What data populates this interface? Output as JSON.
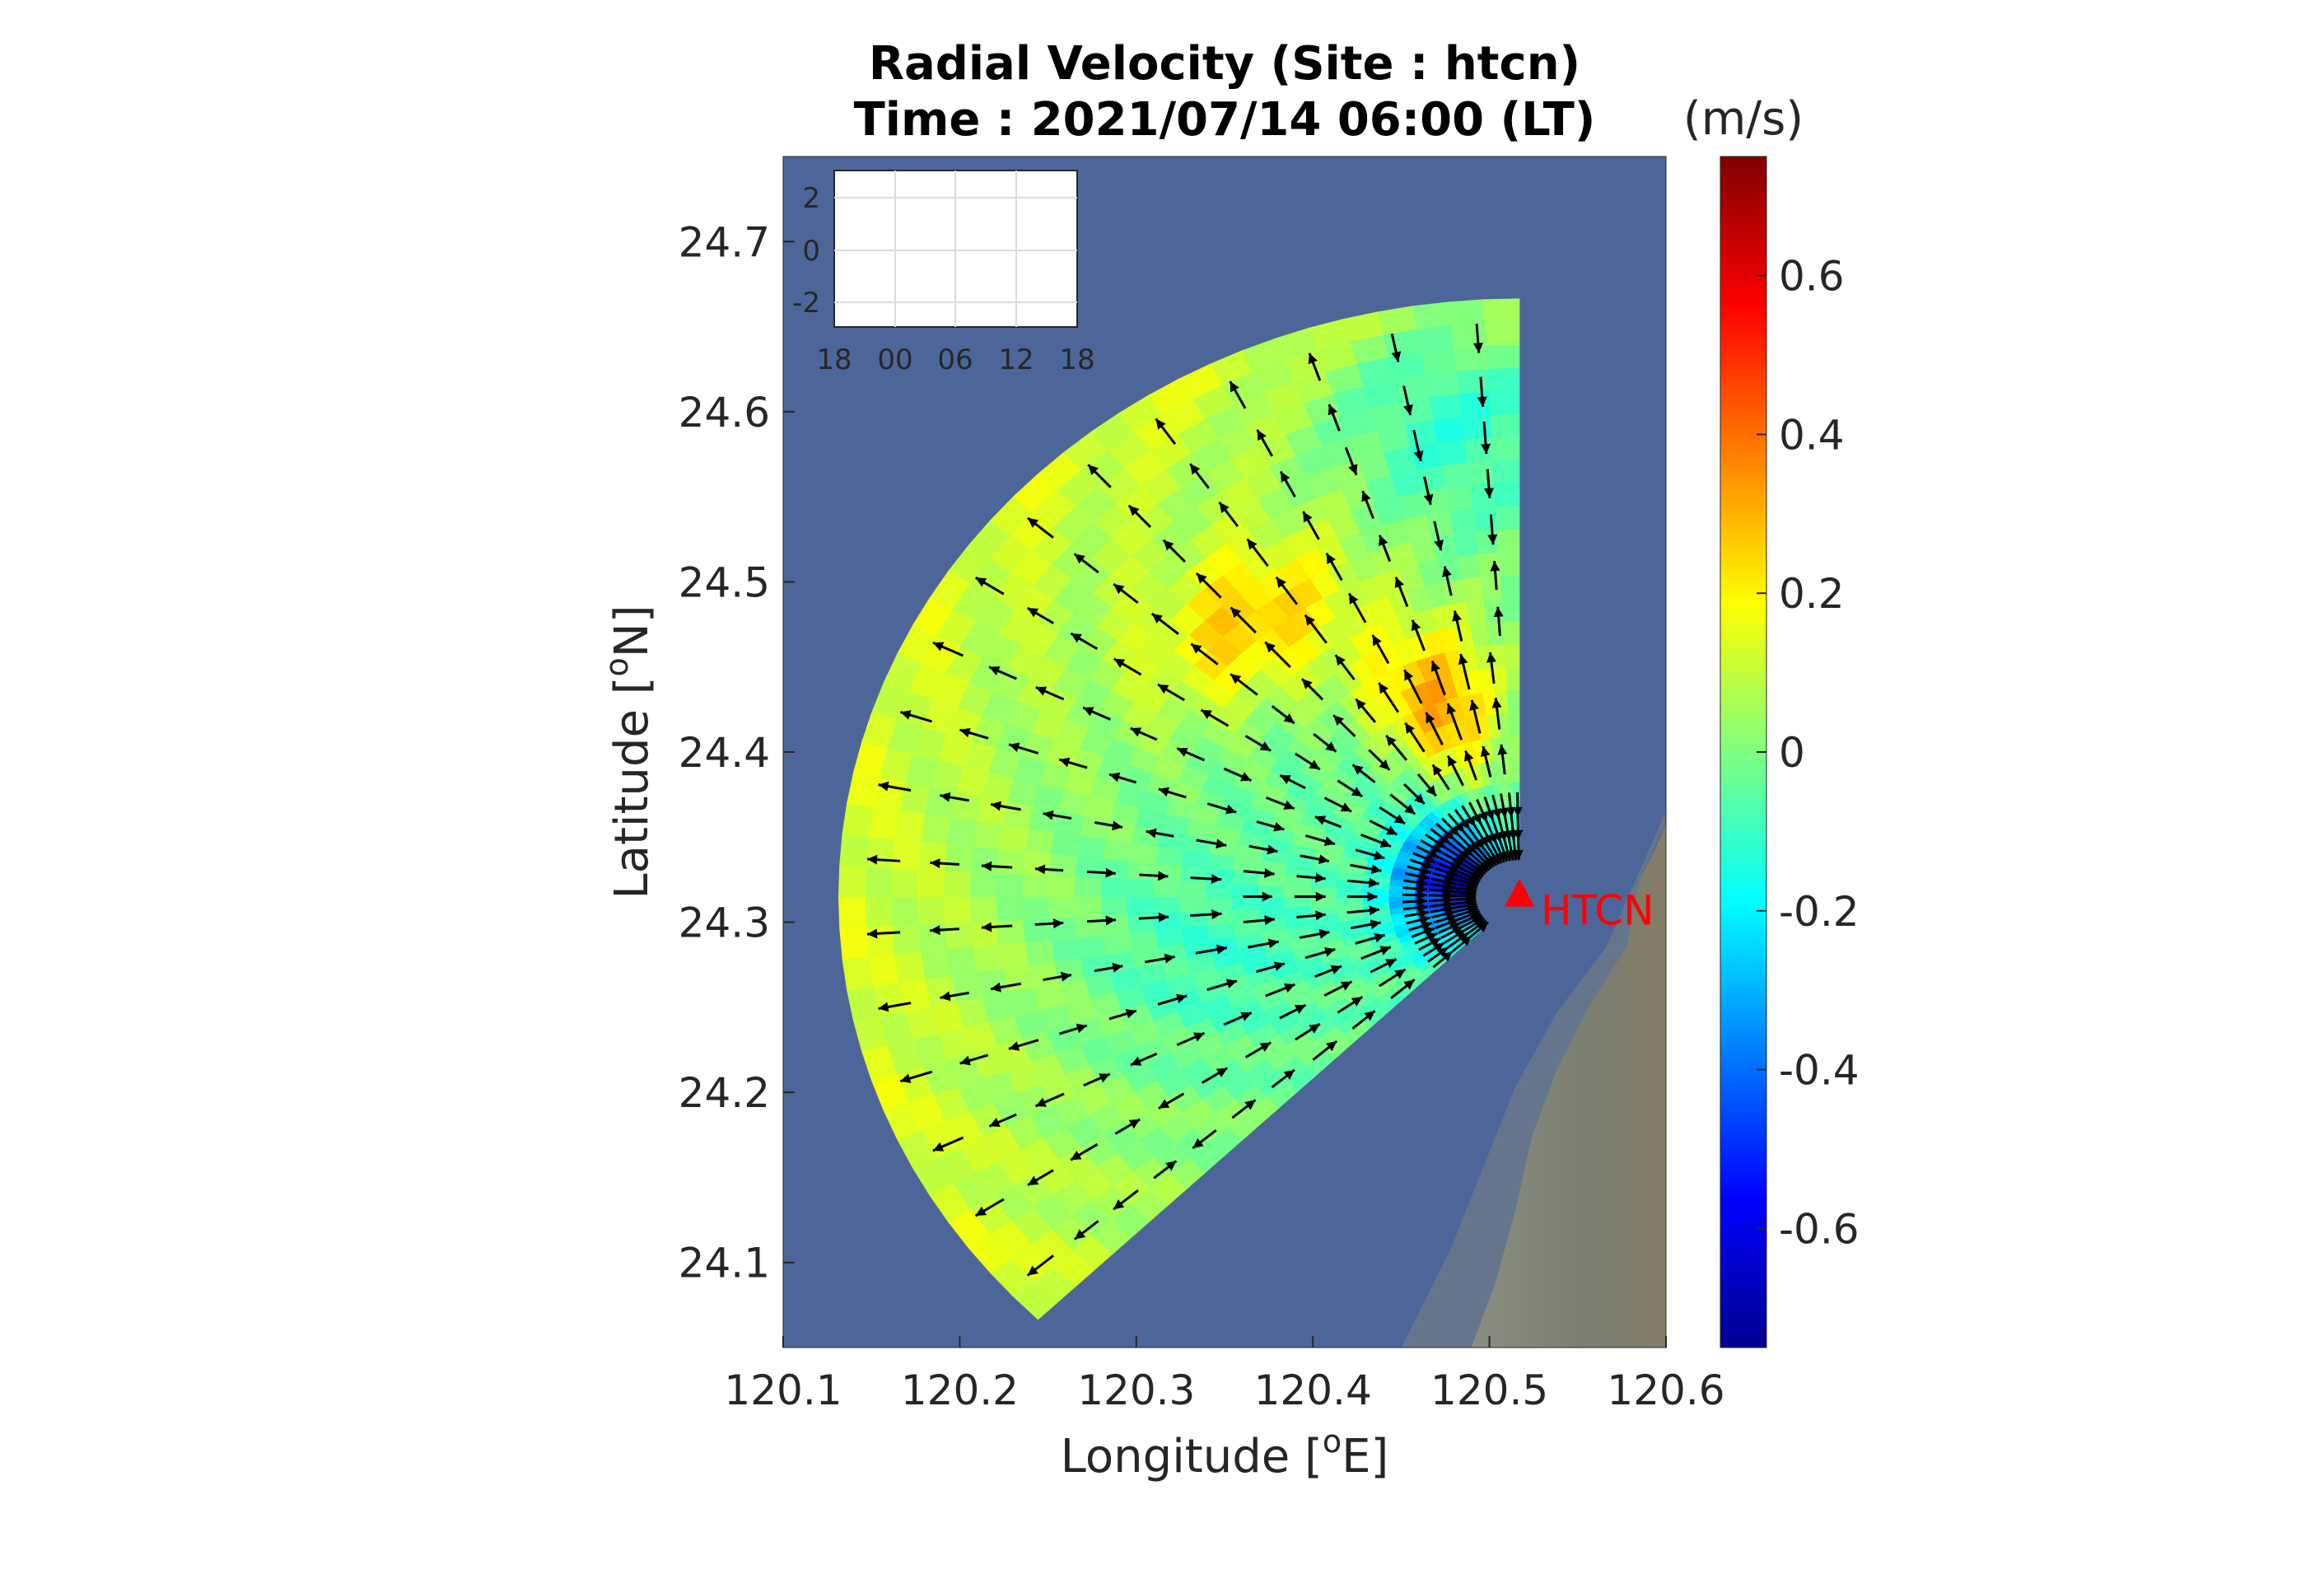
{
  "chart_data": {
    "type": "heatmap",
    "title_line1": "Radial Velocity (Site : htcn)",
    "title_line2": "Time : 2021/07/14 06:00 (LT)",
    "xlabel_main": "Longitude [",
    "xlabel_sup": "o",
    "xlabel_end": "E]",
    "ylabel_main": "Latitude [",
    "ylabel_sup": "o",
    "ylabel_end": "N]",
    "xlim": [
      120.1,
      120.6
    ],
    "ylim": [
      24.05,
      24.75
    ],
    "xticks": [
      "120.1",
      "120.2",
      "120.3",
      "120.4",
      "120.5",
      "120.6"
    ],
    "yticks": [
      "24.1",
      "24.2",
      "24.3",
      "24.4",
      "24.5",
      "24.6",
      "24.7"
    ],
    "colorbar": {
      "unit": "(m/s)",
      "range": [
        -0.75,
        0.75
      ],
      "ticks": [
        "0.6",
        "0.4",
        "0.2",
        "0",
        "-0.2",
        "-0.4",
        "-0.6"
      ],
      "colormap": "jet"
    },
    "site": {
      "label": "HTCN",
      "lon": 120.517,
      "lat": 24.315,
      "color": "#ff0000"
    },
    "sector": {
      "bearing_start_deg": 225,
      "bearing_end_deg": 360,
      "max_range_km": 38,
      "range_ring_km": 3
    },
    "inset": {
      "yticks": [
        "2",
        "0",
        "-2"
      ],
      "xticks": [
        "18",
        "00",
        "06",
        "12",
        "18"
      ]
    },
    "colors": {
      "sea": "#4d6699",
      "land": "#7f8475",
      "arrow": "#000000"
    }
  }
}
